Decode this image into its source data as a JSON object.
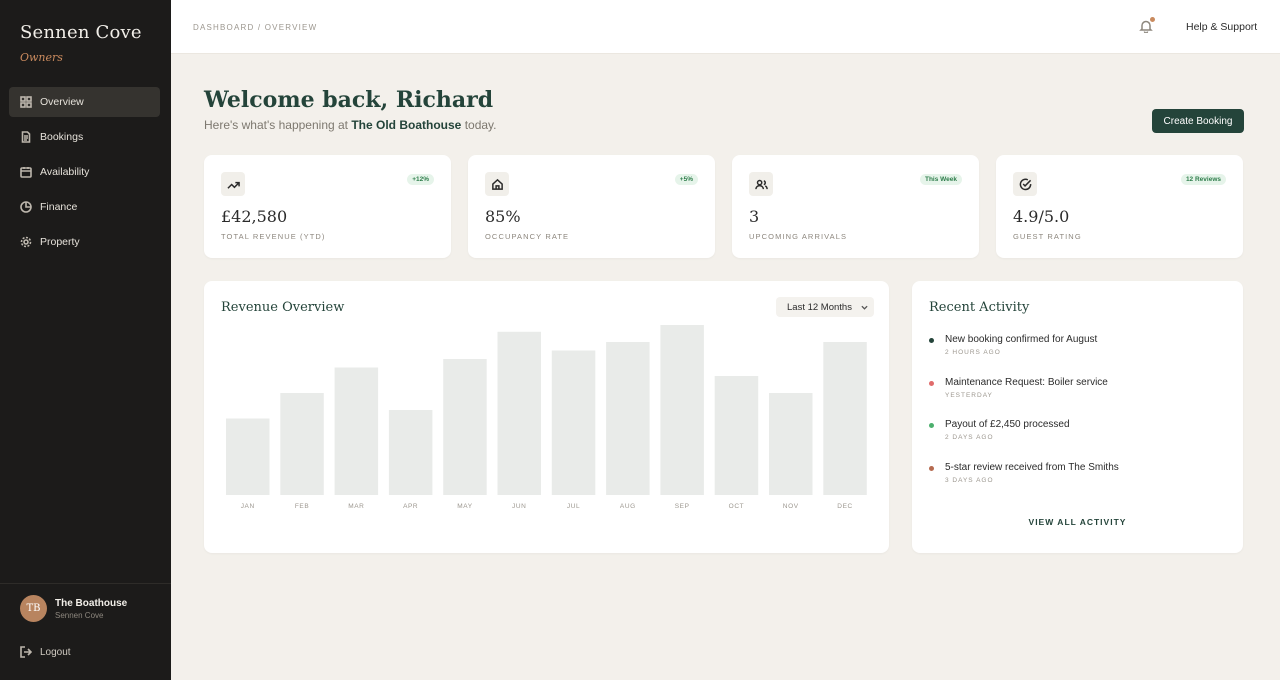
{
  "sidebar": {
    "brand": "Sennen Cove",
    "brand_sub": "Owners",
    "items": [
      {
        "label": "Overview",
        "icon": "grid-icon",
        "active": true
      },
      {
        "label": "Bookings",
        "icon": "document-icon"
      },
      {
        "label": "Availability",
        "icon": "calendar-icon"
      },
      {
        "label": "Finance",
        "icon": "pie-chart-icon"
      },
      {
        "label": "Property",
        "icon": "gear-icon"
      }
    ],
    "user": {
      "initials": "TB",
      "name": "The Boathouse",
      "location": "Sennen Cove"
    },
    "logout": "Logout"
  },
  "topbar": {
    "breadcrumb": "DASHBOARD / OVERVIEW",
    "help": "Help & Support"
  },
  "welcome": {
    "title": "Welcome back, Richard",
    "sub_before": "Here's what's happening at ",
    "property": "The Old Boathouse",
    "sub_after": " today.",
    "create_button": "Create Booking"
  },
  "stats": [
    {
      "value": "£42,580",
      "label": "TOTAL REVENUE (YTD)",
      "badge": "+12%",
      "icon": "trending-up-icon"
    },
    {
      "value": "85%",
      "label": "OCCUPANCY RATE",
      "badge": "+5%",
      "icon": "home-icon"
    },
    {
      "value": "3",
      "label": "UPCOMING ARRIVALS",
      "badge": "This Week",
      "icon": "users-icon"
    },
    {
      "value": "4.9/5.0",
      "label": "GUEST RATING",
      "badge": "12 Reviews",
      "icon": "check-circle-icon"
    }
  ],
  "revenue": {
    "title": "Revenue Overview",
    "range": "Last 12 Months"
  },
  "chart_data": {
    "type": "bar",
    "categories": [
      "JAN",
      "FEB",
      "MAR",
      "APR",
      "MAY",
      "JUN",
      "JUL",
      "AUG",
      "SEP",
      "OCT",
      "NOV",
      "DEC"
    ],
    "values": [
      45,
      60,
      75,
      50,
      80,
      96,
      85,
      90,
      100,
      70,
      60,
      90
    ],
    "ylim": [
      0,
      100
    ],
    "bar_color": "#e9ebe9",
    "grid": false
  },
  "activity": {
    "title": "Recent Activity",
    "items": [
      {
        "text": "New booking confirmed for August",
        "time": "2 HOURS AGO",
        "color": "#24443a"
      },
      {
        "text": "Maintenance Request: Boiler service",
        "time": "YESTERDAY",
        "color": "#e06b6b"
      },
      {
        "text": "Payout of £2,450 processed",
        "time": "2 DAYS AGO",
        "color": "#4caf6d"
      },
      {
        "text": "5-star review received from The Smiths",
        "time": "3 DAYS AGO",
        "color": "#b56a4f"
      }
    ],
    "view_all": "VIEW ALL ACTIVITY"
  }
}
